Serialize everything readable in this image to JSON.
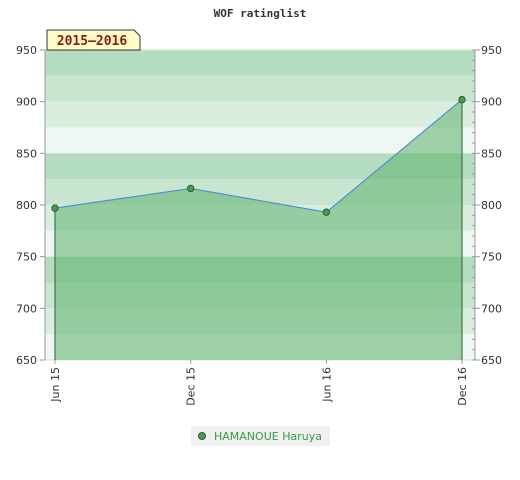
{
  "chart_data": {
    "type": "area",
    "title": "WOF ratinglist",
    "badge": "2015–2016",
    "categories": [
      "Jun 15",
      "Dec 15",
      "Jun 16",
      "Dec 16"
    ],
    "series": [
      {
        "name": "HAMANOUE Haruya",
        "values": [
          797,
          816,
          793,
          902
        ]
      }
    ],
    "y_ticks": [
      "950",
      "900",
      "850",
      "800",
      "750",
      "700",
      "650"
    ],
    "ylim": [
      650,
      950
    ],
    "legend_position": "bottom-center",
    "colors": {
      "line": "#4f8fd1",
      "area": "#5db36b",
      "marker": "#4a9a55",
      "legend_text": "#3a9a4a"
    }
  }
}
